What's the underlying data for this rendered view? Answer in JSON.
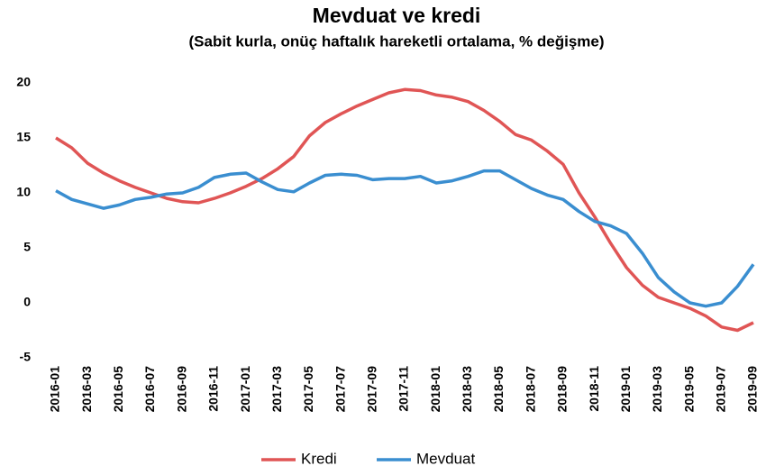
{
  "chart_data": {
    "type": "line",
    "title": "Mevduat ve kredi",
    "subtitle": "(Sabit kurla, onüç haftalık hareketli ortalama, % değişme)",
    "categories": [
      "2016-01",
      null,
      "2016-03",
      null,
      "2016-05",
      null,
      "2016-07",
      null,
      "2016-09",
      null,
      "2016-11",
      null,
      "2017-01",
      null,
      "2017-03",
      null,
      "2017-05",
      null,
      "2017-07",
      null,
      "2017-09",
      null,
      "2017-11",
      null,
      "2018-01",
      null,
      "2018-03",
      null,
      "2018-05",
      null,
      "2018-07",
      null,
      "2018-09",
      null,
      "2018-11",
      null,
      "2019-01",
      null,
      "2019-03",
      null,
      "2019-05",
      null,
      "2019-07",
      null,
      "2019-09"
    ],
    "series": [
      {
        "name": "Kredi",
        "color": "#e05555",
        "values": [
          15.0,
          14.1,
          12.7,
          11.8,
          11.1,
          10.5,
          10.0,
          9.5,
          9.2,
          9.1,
          9.5,
          10.0,
          10.6,
          11.3,
          12.2,
          13.3,
          15.2,
          16.4,
          17.2,
          17.9,
          18.5,
          19.1,
          19.4,
          19.3,
          18.9,
          18.7,
          18.3,
          17.5,
          16.5,
          15.3,
          14.8,
          13.8,
          12.6,
          10.0,
          7.8,
          5.4,
          3.2,
          1.6,
          0.5,
          0.0,
          -0.5,
          -1.2,
          -2.2,
          -2.5,
          -1.8
        ]
      },
      {
        "name": "Mevduat",
        "color": "#3a8ed0",
        "values": [
          10.2,
          9.4,
          9.0,
          8.6,
          8.9,
          9.4,
          9.6,
          9.9,
          10.0,
          10.5,
          11.4,
          11.7,
          11.8,
          11.0,
          10.3,
          10.1,
          10.9,
          11.6,
          11.7,
          11.6,
          11.2,
          11.3,
          11.3,
          11.5,
          10.9,
          11.1,
          11.5,
          12.0,
          12.0,
          11.2,
          10.4,
          9.8,
          9.4,
          8.3,
          7.4,
          7.0,
          6.3,
          4.5,
          2.3,
          1.0,
          0.0,
          -0.3,
          0.0,
          1.5,
          3.5
        ]
      }
    ],
    "ylim": [
      -5,
      20
    ],
    "yticks": [
      -5,
      0,
      5,
      10,
      15,
      20
    ],
    "grid": false,
    "legend": "bottom"
  }
}
